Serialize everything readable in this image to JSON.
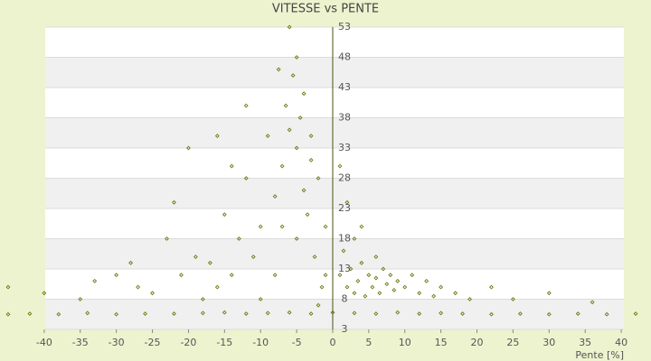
{
  "chart_data": {
    "type": "scatter",
    "title": "VITESSE vs PENTE",
    "x_label": "Pente [%]",
    "color": "#6b7a10",
    "xlim": [
      -46,
      44
    ],
    "ylim": [
      3,
      53
    ],
    "xticks": [
      -40,
      -35,
      -30,
      -25,
      -20,
      -15,
      -10,
      -5,
      0,
      5,
      10,
      15,
      20,
      25,
      30,
      35,
      40
    ],
    "yticks": [
      3,
      8,
      13,
      18,
      23,
      28,
      33,
      38,
      43,
      48,
      53
    ],
    "x": [
      -45,
      -42,
      -38,
      -34,
      -30,
      -26,
      -22,
      -18,
      -15,
      -12,
      -9,
      -6,
      -3,
      0,
      3,
      6,
      9,
      12,
      15,
      18,
      22,
      26,
      30,
      34,
      38,
      42,
      1,
      2,
      2.5,
      3,
      3.5,
      4,
      4.5,
      5,
      5.5,
      6,
      6.5,
      7,
      7.5,
      8,
      8.5,
      9,
      10,
      11,
      12,
      13,
      14,
      15,
      17,
      19,
      22,
      25,
      30,
      36,
      1.5,
      3,
      2,
      1,
      4,
      6,
      -1,
      -2,
      -3,
      -4,
      -5,
      -6,
      -5.5,
      -4.5,
      -6.5,
      -7,
      -8,
      -3.5,
      -2.5,
      -1.5,
      -9,
      -10,
      -11,
      -12,
      -13,
      -14,
      -15,
      -16,
      -17,
      -18,
      -20,
      -21,
      -23,
      -25,
      -27,
      -30,
      -35,
      -40,
      -45,
      -7.5,
      -4,
      -3,
      -5,
      -6,
      -8,
      -10,
      -2,
      -1,
      -12,
      -14,
      -16,
      -19,
      -22,
      -28,
      -33,
      -5,
      -7
    ],
    "values": [
      5.5,
      5.6,
      5.5,
      5.7,
      5.5,
      5.6,
      5.6,
      5.7,
      5.8,
      5.6,
      5.7,
      5.8,
      5.6,
      5.8,
      5.7,
      5.6,
      5.8,
      5.6,
      5.7,
      5.6,
      5.5,
      5.6,
      5.5,
      5.6,
      5.5,
      5.6,
      12,
      10,
      13,
      9,
      11,
      14,
      8.5,
      12,
      10,
      11.5,
      9,
      13,
      10.5,
      12,
      9.5,
      11,
      10,
      12,
      9,
      11,
      8.5,
      10,
      9,
      8,
      10,
      8,
      9,
      7.5,
      16,
      18,
      24,
      30,
      20,
      15,
      20,
      28,
      35,
      42,
      48,
      53,
      45,
      38,
      40,
      30,
      25,
      22,
      15,
      10,
      35,
      20,
      15,
      28,
      18,
      12,
      22,
      10,
      14,
      8,
      33,
      12,
      18,
      9,
      10,
      12,
      8,
      9,
      10,
      46,
      26,
      31,
      33,
      36,
      12,
      8,
      7,
      12,
      40,
      30,
      35,
      15,
      24,
      14,
      11,
      18,
      20
    ]
  }
}
